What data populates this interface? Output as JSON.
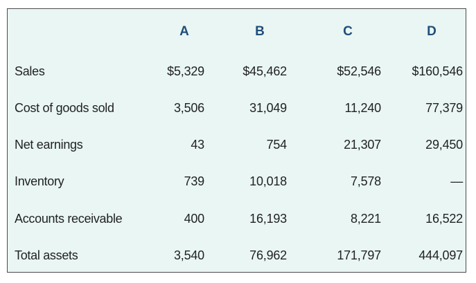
{
  "columns": [
    "A",
    "B",
    "C",
    "D"
  ],
  "rows": [
    {
      "label": "Sales",
      "values": [
        "$5,329",
        "$45,462",
        "$52,546",
        "$160,546"
      ]
    },
    {
      "label": "Cost of goods sold",
      "values": [
        "3,506",
        "31,049",
        "11,240",
        "77,379"
      ]
    },
    {
      "label": "Net earnings",
      "values": [
        "43",
        "754",
        "21,307",
        "29,450"
      ]
    },
    {
      "label": "Inventory",
      "values": [
        "739",
        "10,018",
        "7,578",
        "—"
      ]
    },
    {
      "label": "Accounts receivable",
      "values": [
        "400",
        "16,193",
        "8,221",
        "16,522"
      ]
    },
    {
      "label": "Total assets",
      "values": [
        "3,540",
        "76,962",
        "171,797",
        "444,097"
      ]
    }
  ],
  "colors": {
    "background": "#e9f6f4",
    "header_text": "#1f4e79",
    "border": "#4a4a4a"
  }
}
